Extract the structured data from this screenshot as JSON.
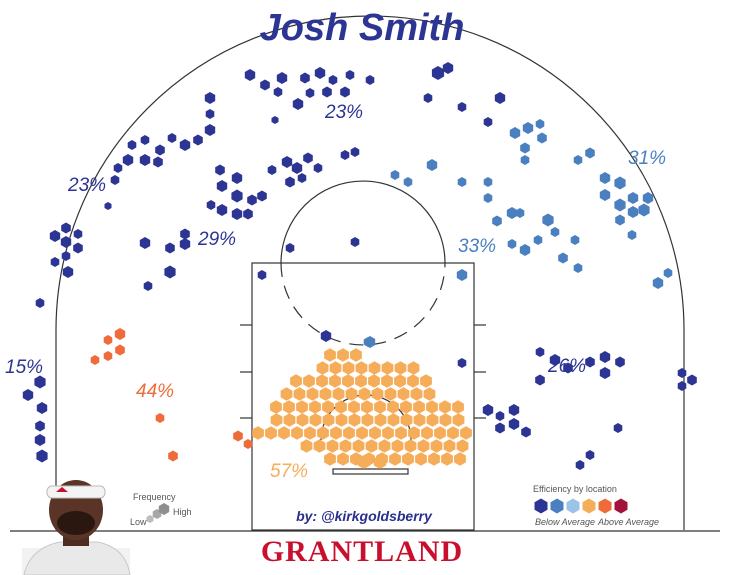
{
  "chart_data": {
    "type": "shot-chart",
    "title": "Josh Smith",
    "zones": [
      {
        "label": "23%",
        "value": 23,
        "color": "#2c3593"
      },
      {
        "label": "23%",
        "value": 23,
        "color": "#2c3593"
      },
      {
        "label": "31%",
        "value": 31,
        "color": "#4a80c0"
      },
      {
        "label": "29%",
        "value": 29,
        "color": "#2c3593"
      },
      {
        "label": "33%",
        "value": 33,
        "color": "#4a80c0"
      },
      {
        "label": "15%",
        "value": 15,
        "color": "#2c3593"
      },
      {
        "label": "44%",
        "value": 44,
        "color": "#ef6b3a"
      },
      {
        "label": "26%",
        "value": 26,
        "color": "#2c3593"
      },
      {
        "label": "57%",
        "value": 57,
        "color": "#f6ad5a"
      }
    ],
    "frequency_legend": {
      "title": "Frequency",
      "low": "Low",
      "high": "High"
    },
    "efficiency_legend": {
      "title": "Efficiency by location",
      "low": "Below Average",
      "high": "Above Average",
      "colors": [
        "#2c3593",
        "#4a80c0",
        "#9ac3e6",
        "#f6ad5a",
        "#ef6b3a",
        "#a3123a"
      ]
    }
  },
  "credit": "by: @kirkgoldsberry",
  "brand": "GRANTLAND"
}
